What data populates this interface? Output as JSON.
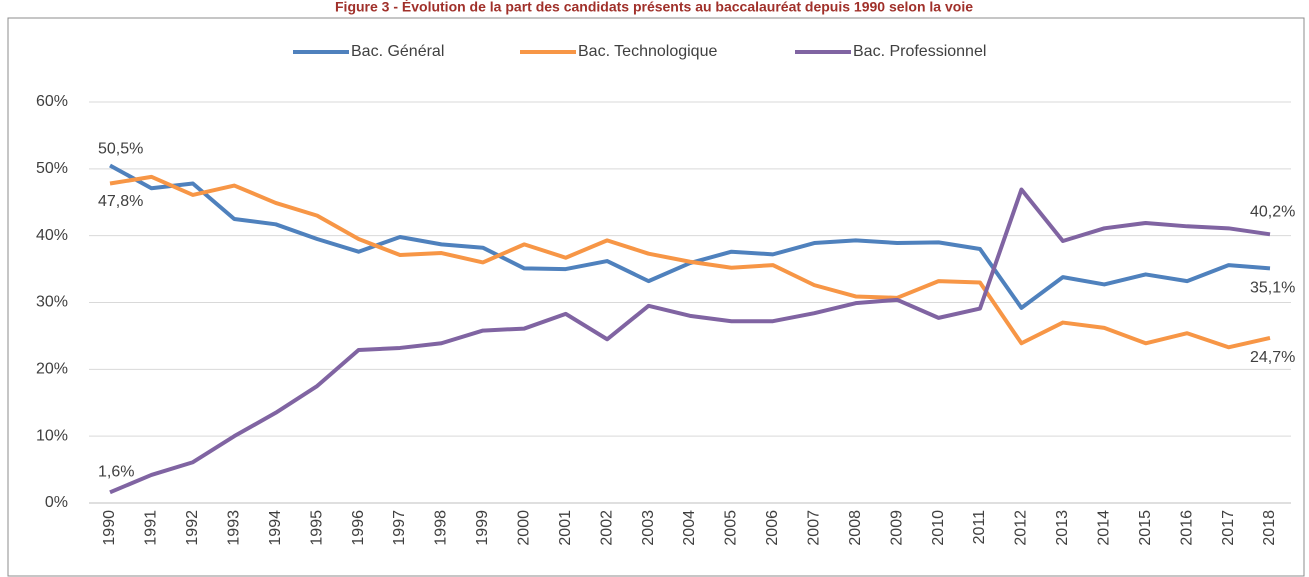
{
  "chart_data": {
    "type": "line",
    "title": "Figure 3 - Évolution de la part des candidats présents au baccalauréat depuis 1990 selon la voie",
    "categories": [
      "1990",
      "1991",
      "1992",
      "1993",
      "1994",
      "1995",
      "1996",
      "1997",
      "1998",
      "1999",
      "2000",
      "2001",
      "2002",
      "2003",
      "2004",
      "2005",
      "2006",
      "2007",
      "2008",
      "2009",
      "2010",
      "2011",
      "2012",
      "2013",
      "2014",
      "2015",
      "2016",
      "2017",
      "2018"
    ],
    "series": [
      {
        "name": "Bac. Général",
        "color": "#4f81bd",
        "values": [
          50.5,
          47.1,
          47.8,
          42.5,
          41.7,
          39.5,
          37.6,
          39.8,
          38.7,
          38.2,
          35.1,
          35.0,
          36.2,
          33.2,
          35.9,
          37.6,
          37.2,
          38.9,
          39.3,
          38.9,
          39.0,
          38.0,
          29.2,
          33.8,
          32.7,
          34.2,
          33.2,
          35.6,
          35.1
        ],
        "value_labels": [
          "50,5%",
          null,
          null,
          null,
          null,
          null,
          null,
          null,
          null,
          null,
          null,
          null,
          null,
          null,
          null,
          null,
          null,
          null,
          null,
          null,
          null,
          null,
          null,
          null,
          null,
          null,
          null,
          null,
          "35,1%"
        ]
      },
      {
        "name": "Bac. Technologique",
        "color": "#f79646",
        "values": [
          47.8,
          48.8,
          46.1,
          47.5,
          44.9,
          43.0,
          39.5,
          37.1,
          37.4,
          36.0,
          38.7,
          36.7,
          39.3,
          37.3,
          36.1,
          35.2,
          35.6,
          32.6,
          30.9,
          30.7,
          33.2,
          33.0,
          23.9,
          27.0,
          26.2,
          23.9,
          25.4,
          23.3,
          24.7
        ],
        "value_labels": [
          "47,8%",
          null,
          null,
          null,
          null,
          null,
          null,
          null,
          null,
          null,
          null,
          null,
          null,
          null,
          null,
          null,
          null,
          null,
          null,
          null,
          null,
          null,
          null,
          null,
          null,
          null,
          null,
          null,
          "24,7%"
        ]
      },
      {
        "name": "Bac. Professionnel",
        "color": "#8064a2",
        "values": [
          1.6,
          4.2,
          6.1,
          10.0,
          13.5,
          17.5,
          22.9,
          23.2,
          23.9,
          25.8,
          26.1,
          28.3,
          24.5,
          29.5,
          28.0,
          27.2,
          27.2,
          28.4,
          29.9,
          30.4,
          27.7,
          29.1,
          46.9,
          39.2,
          41.1,
          41.9,
          41.4,
          41.1,
          40.2
        ],
        "value_labels": [
          "1,6%",
          null,
          null,
          null,
          null,
          null,
          null,
          null,
          null,
          null,
          null,
          null,
          null,
          null,
          null,
          null,
          null,
          null,
          null,
          null,
          null,
          null,
          null,
          null,
          null,
          null,
          null,
          null,
          "40,2%"
        ]
      }
    ],
    "ylim": [
      0,
      60
    ],
    "yticks": [
      {
        "value": 0,
        "label": "0%"
      },
      {
        "value": 10,
        "label": "10%"
      },
      {
        "value": 20,
        "label": "20%"
      },
      {
        "value": 30,
        "label": "30%"
      },
      {
        "value": 40,
        "label": "40%"
      },
      {
        "value": 50,
        "label": "50%"
      },
      {
        "value": 60,
        "label": "60%"
      }
    ],
    "grid": true,
    "legend": "top"
  }
}
